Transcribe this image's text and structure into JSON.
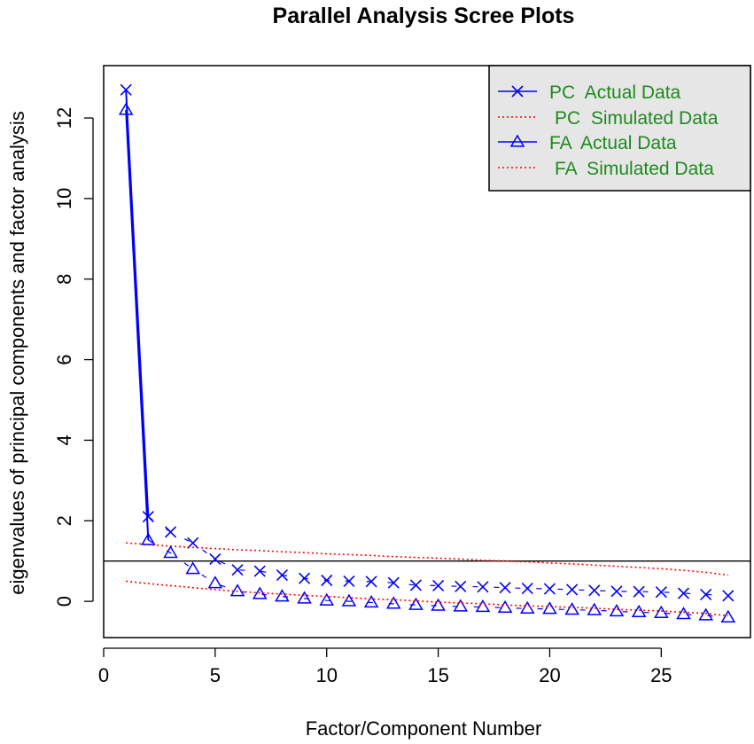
{
  "chart_data": {
    "type": "line",
    "title": "Parallel Analysis Scree Plots",
    "xlabel": "Factor/Component Number",
    "ylabel": "eigenvalues of principal components and factor analysis",
    "xlim": [
      0,
      29
    ],
    "ylim": [
      -0.9,
      13.3
    ],
    "x_ticks": [
      0,
      5,
      10,
      15,
      20,
      25
    ],
    "y_ticks": [
      0,
      2,
      4,
      6,
      8,
      10,
      12
    ],
    "reference_line": 1,
    "legend_position": "top-right",
    "grid": false,
    "colors": {
      "actual": "#0000ff",
      "simulated": "#ff0000",
      "legend_text": "#1f8a1f",
      "legend_bg": "#e6e6e6"
    },
    "x": [
      1,
      2,
      3,
      4,
      5,
      6,
      7,
      8,
      9,
      10,
      11,
      12,
      13,
      14,
      15,
      16,
      17,
      18,
      19,
      20,
      21,
      22,
      23,
      24,
      25,
      26,
      27,
      28
    ],
    "series": [
      {
        "name": "PC  Actual Data",
        "marker": "x",
        "style": "solid-line",
        "values": [
          12.7,
          2.1,
          1.72,
          1.45,
          1.05,
          0.78,
          0.75,
          0.65,
          0.57,
          0.52,
          0.5,
          0.49,
          0.46,
          0.4,
          0.39,
          0.37,
          0.36,
          0.34,
          0.32,
          0.31,
          0.29,
          0.27,
          0.25,
          0.24,
          0.23,
          0.2,
          0.17,
          0.14
        ]
      },
      {
        "name": "PC  Simulated Data",
        "marker": "none",
        "style": "dotted",
        "values": [
          1.45,
          1.41,
          1.37,
          1.34,
          1.31,
          1.28,
          1.26,
          1.23,
          1.21,
          1.18,
          1.16,
          1.14,
          1.11,
          1.09,
          1.07,
          1.05,
          1.02,
          1.0,
          0.98,
          0.95,
          0.93,
          0.9,
          0.87,
          0.84,
          0.81,
          0.77,
          0.72,
          0.65
        ]
      },
      {
        "name": "FA  Actual Data",
        "marker": "triangle",
        "style": "solid-line",
        "values": [
          12.2,
          1.52,
          1.2,
          0.8,
          0.45,
          0.25,
          0.18,
          0.12,
          0.07,
          0.02,
          0.0,
          -0.03,
          -0.06,
          -0.09,
          -0.11,
          -0.13,
          -0.14,
          -0.16,
          -0.18,
          -0.19,
          -0.21,
          -0.22,
          -0.25,
          -0.27,
          -0.29,
          -0.32,
          -0.35,
          -0.4
        ]
      },
      {
        "name": "FA  Simulated Data",
        "marker": "none",
        "style": "dotted",
        "values": [
          0.5,
          0.44,
          0.39,
          0.34,
          0.29,
          0.25,
          0.21,
          0.18,
          0.15,
          0.12,
          0.09,
          0.06,
          0.04,
          0.01,
          -0.02,
          -0.04,
          -0.06,
          -0.09,
          -0.11,
          -0.13,
          -0.15,
          -0.17,
          -0.2,
          -0.22,
          -0.24,
          -0.27,
          -0.3,
          -0.36
        ]
      }
    ]
  }
}
